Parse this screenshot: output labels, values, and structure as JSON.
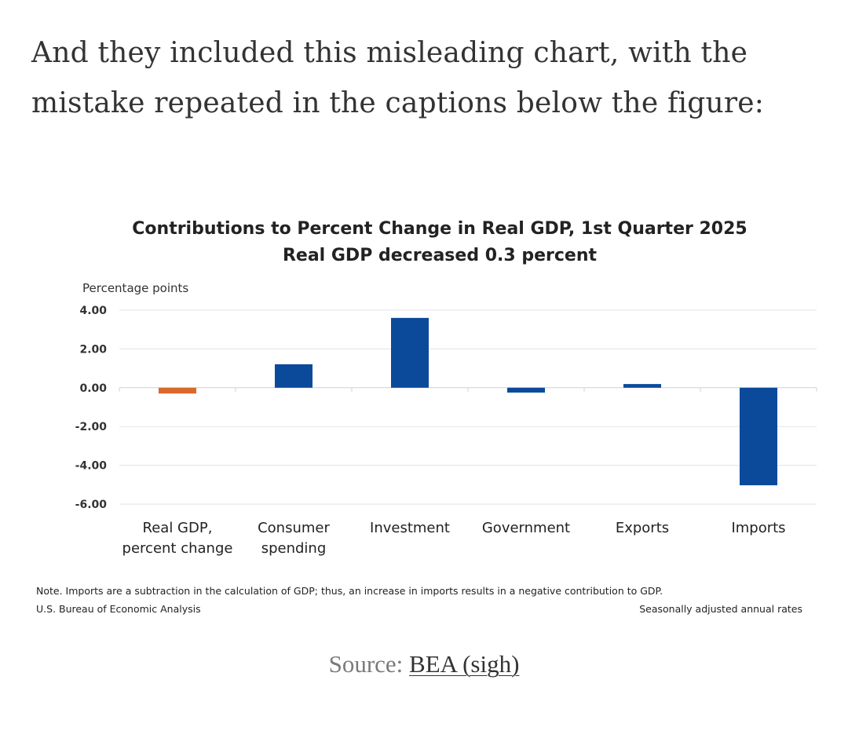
{
  "intro": {
    "line1": "And they included this misleading chart, with the",
    "line2": "mistake repeated in the captions below the figure:"
  },
  "colors": {
    "text": "#333333",
    "bar_primary": "#0b4a9a",
    "bar_highlight": "#d9692b",
    "gridline": "#e3e3e3"
  },
  "chart_data": {
    "type": "bar",
    "title": "Contributions to Percent Change in Real GDP, 1st Quarter 2025",
    "subtitle": "Real GDP decreased 0.3 percent",
    "ylabel": "Percentage points",
    "ylim": [
      -6,
      4
    ],
    "yticks": [
      "4.00",
      "2.00",
      "0.00",
      "-2.00",
      "-4.00",
      "-6.00"
    ],
    "ytick_values": [
      4,
      2,
      0,
      -2,
      -4,
      -6
    ],
    "categories": [
      [
        "Real GDP,",
        "percent change"
      ],
      [
        "Consumer",
        "spending"
      ],
      [
        "Investment"
      ],
      [
        "Government"
      ],
      [
        "Exports"
      ],
      [
        "Imports"
      ]
    ],
    "values": [
      -0.3,
      1.21,
      3.6,
      -0.25,
      0.19,
      -5.03
    ],
    "bar_colors": [
      "#d9692b",
      "#0b4a9a",
      "#0b4a9a",
      "#0b4a9a",
      "#0b4a9a",
      "#0b4a9a"
    ],
    "note": "Note. Imports are a subtraction in the calculation of GDP; thus, an increase in imports results in a negative contribution to GDP.",
    "source": "U.S. Bureau of Economic Analysis",
    "rates_label": "Seasonally adjusted annual rates",
    "grid": true,
    "legend": "none"
  },
  "caption": {
    "prefix": "Source: ",
    "link": "BEA (sigh)"
  }
}
